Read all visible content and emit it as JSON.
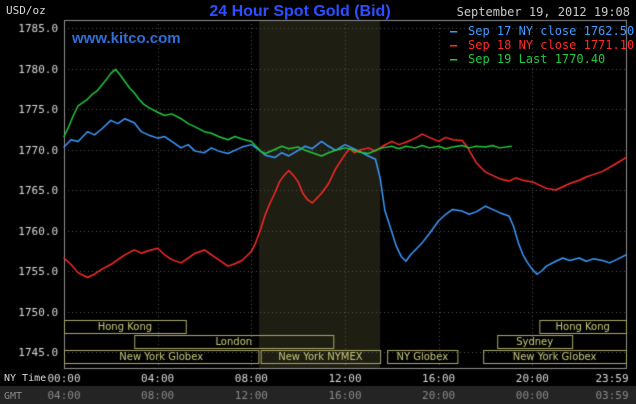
{
  "header": {
    "unit_label": "USD/oz",
    "title": "24 Hour Spot Gold (Bid)",
    "datetime": "September 19, 2012 19:08",
    "watermark": "www.kitco.com"
  },
  "legend_marker": "—",
  "legend": [
    {
      "label": "Sep 17 NY close 1762.50",
      "color": "#3d9aff"
    },
    {
      "label": "Sep 18 NY close 1771.10",
      "color": "#ff2a2a"
    },
    {
      "label": "Sep 19 Last 1770.40",
      "color": "#22c83c"
    }
  ],
  "axes": {
    "ny_time_label": "NY Time",
    "gmt_label": "GMT"
  },
  "colors": {
    "background": "#000000",
    "grid": "#4f4f4f",
    "border": "#8f8f8f",
    "band": "#1e1e12",
    "gmt_strip": "#242424",
    "title": "#2d4fff",
    "watermark": "#2e6fd8",
    "datetime": "#c8c8c8",
    "axis_text": "#d8d8d8",
    "gmt_text": "#8a8a8a",
    "session": "#a8a868",
    "session_text": "#c8c87a"
  },
  "chart_data": {
    "type": "line",
    "title": "24 Hour Spot Gold (Bid)",
    "ylabel": "USD/oz",
    "ylim": [
      1745,
      1785
    ],
    "xlim_hours": [
      0,
      24
    ],
    "y_tick_step": 5,
    "y_tick_labels": [
      "1785.0",
      "1780.0",
      "1775.0",
      "1770.0",
      "1765.0",
      "1760.0",
      "1755.0",
      "1750.0",
      "1745.0"
    ],
    "x_ticks": [
      {
        "hour": 0,
        "ny": "00:00",
        "gmt": "04:00"
      },
      {
        "hour": 4,
        "ny": "04:00",
        "gmt": "08:00"
      },
      {
        "hour": 8,
        "ny": "08:00",
        "gmt": "12:00"
      },
      {
        "hour": 12,
        "ny": "12:00",
        "gmt": "16:00"
      },
      {
        "hour": 16,
        "ny": "16:00",
        "gmt": "20:00"
      },
      {
        "hour": 20,
        "ny": "20:00",
        "gmt": "00:00"
      },
      {
        "hour": 24,
        "ny": "23:59",
        "gmt": "03:59"
      }
    ],
    "grid": true,
    "legend_position": "top-right",
    "highlight_band_hours": [
      8.33,
      13.5
    ],
    "sessions": [
      [
        {
          "label": "Hong Kong",
          "start": 0,
          "end": 5.2
        },
        {
          "label": "Hong Kong",
          "start": 20.3,
          "end": 24
        }
      ],
      [
        {
          "label": "London",
          "start": 3.0,
          "end": 11.5
        },
        {
          "label": "Sydney",
          "start": 18.5,
          "end": 21.7
        }
      ],
      [
        {
          "label": "New York Globex",
          "start": 0,
          "end": 8.3
        },
        {
          "label": "New York NYMEX",
          "start": 8.4,
          "end": 13.5
        },
        {
          "label": "NY Globex",
          "start": 13.8,
          "end": 16.8
        },
        {
          "label": "New York Globex",
          "start": 17.9,
          "end": 24
        }
      ]
    ],
    "series": [
      {
        "name": "Sep 17 NY close 1762.50",
        "color": "#3d9aff",
        "points": [
          [
            0,
            1770.3
          ],
          [
            0.3,
            1771.2
          ],
          [
            0.6,
            1771.0
          ],
          [
            1,
            1772.2
          ],
          [
            1.3,
            1771.8
          ],
          [
            1.6,
            1772.5
          ],
          [
            2,
            1773.6
          ],
          [
            2.3,
            1773.2
          ],
          [
            2.6,
            1773.8
          ],
          [
            3,
            1773.3
          ],
          [
            3.3,
            1772.2
          ],
          [
            3.6,
            1771.8
          ],
          [
            4,
            1771.4
          ],
          [
            4.3,
            1771.6
          ],
          [
            4.6,
            1771.0
          ],
          [
            5,
            1770.2
          ],
          [
            5.3,
            1770.6
          ],
          [
            5.6,
            1769.8
          ],
          [
            6,
            1769.6
          ],
          [
            6.3,
            1770.2
          ],
          [
            6.6,
            1769.8
          ],
          [
            7,
            1769.5
          ],
          [
            7.3,
            1769.9
          ],
          [
            7.6,
            1770.3
          ],
          [
            8,
            1770.6
          ],
          [
            8.3,
            1770.0
          ],
          [
            8.6,
            1769.3
          ],
          [
            9,
            1769.0
          ],
          [
            9.3,
            1769.6
          ],
          [
            9.6,
            1769.2
          ],
          [
            10,
            1769.9
          ],
          [
            10.3,
            1770.4
          ],
          [
            10.6,
            1770.1
          ],
          [
            11,
            1771.0
          ],
          [
            11.3,
            1770.4
          ],
          [
            11.6,
            1769.9
          ],
          [
            12,
            1770.6
          ],
          [
            12.3,
            1770.2
          ],
          [
            12.6,
            1769.8
          ],
          [
            13,
            1769.2
          ],
          [
            13.3,
            1768.8
          ],
          [
            13.5,
            1766.5
          ],
          [
            13.7,
            1762.5
          ],
          [
            14,
            1759.8
          ],
          [
            14.2,
            1758.0
          ],
          [
            14.4,
            1756.8
          ],
          [
            14.6,
            1756.2
          ],
          [
            14.8,
            1757.0
          ],
          [
            15,
            1757.6
          ],
          [
            15.3,
            1758.5
          ],
          [
            15.6,
            1759.6
          ],
          [
            16,
            1761.2
          ],
          [
            16.3,
            1762.0
          ],
          [
            16.6,
            1762.6
          ],
          [
            17,
            1762.4
          ],
          [
            17.3,
            1762.0
          ],
          [
            17.6,
            1762.3
          ],
          [
            18,
            1763.0
          ],
          [
            18.3,
            1762.6
          ],
          [
            18.6,
            1762.2
          ],
          [
            19,
            1761.8
          ],
          [
            19.2,
            1760.5
          ],
          [
            19.4,
            1758.5
          ],
          [
            19.6,
            1757.0
          ],
          [
            19.8,
            1756.0
          ],
          [
            20,
            1755.2
          ],
          [
            20.2,
            1754.6
          ],
          [
            20.4,
            1755.0
          ],
          [
            20.6,
            1755.6
          ],
          [
            21,
            1756.2
          ],
          [
            21.3,
            1756.6
          ],
          [
            21.6,
            1756.3
          ],
          [
            22,
            1756.6
          ],
          [
            22.3,
            1756.2
          ],
          [
            22.6,
            1756.5
          ],
          [
            23,
            1756.3
          ],
          [
            23.3,
            1756.0
          ],
          [
            23.6,
            1756.4
          ],
          [
            24,
            1757.0
          ]
        ]
      },
      {
        "name": "Sep 18 NY close 1771.10",
        "color": "#ff2a2a",
        "points": [
          [
            0,
            1756.6
          ],
          [
            0.3,
            1755.8
          ],
          [
            0.6,
            1754.8
          ],
          [
            1,
            1754.2
          ],
          [
            1.3,
            1754.6
          ],
          [
            1.6,
            1755.2
          ],
          [
            2,
            1755.8
          ],
          [
            2.3,
            1756.4
          ],
          [
            2.6,
            1757.0
          ],
          [
            3,
            1757.6
          ],
          [
            3.3,
            1757.2
          ],
          [
            3.6,
            1757.5
          ],
          [
            4,
            1757.8
          ],
          [
            4.3,
            1757.0
          ],
          [
            4.6,
            1756.4
          ],
          [
            5,
            1756.0
          ],
          [
            5.3,
            1756.6
          ],
          [
            5.6,
            1757.2
          ],
          [
            6,
            1757.6
          ],
          [
            6.3,
            1757.0
          ],
          [
            6.6,
            1756.4
          ],
          [
            7,
            1755.6
          ],
          [
            7.3,
            1755.9
          ],
          [
            7.6,
            1756.3
          ],
          [
            8,
            1757.4
          ],
          [
            8.2,
            1758.6
          ],
          [
            8.4,
            1760.2
          ],
          [
            8.6,
            1762.0
          ],
          [
            8.8,
            1763.4
          ],
          [
            9,
            1764.6
          ],
          [
            9.2,
            1766.0
          ],
          [
            9.4,
            1766.8
          ],
          [
            9.6,
            1767.4
          ],
          [
            9.8,
            1766.8
          ],
          [
            10,
            1766.0
          ],
          [
            10.2,
            1764.6
          ],
          [
            10.4,
            1763.8
          ],
          [
            10.6,
            1763.4
          ],
          [
            11,
            1764.6
          ],
          [
            11.3,
            1765.8
          ],
          [
            11.6,
            1767.6
          ],
          [
            12,
            1769.4
          ],
          [
            12.2,
            1770.1
          ],
          [
            12.4,
            1769.6
          ],
          [
            12.6,
            1769.9
          ],
          [
            13,
            1770.2
          ],
          [
            13.3,
            1769.8
          ],
          [
            13.6,
            1770.4
          ],
          [
            14,
            1771.0
          ],
          [
            14.3,
            1770.6
          ],
          [
            14.6,
            1770.9
          ],
          [
            15,
            1771.4
          ],
          [
            15.3,
            1771.9
          ],
          [
            15.6,
            1771.5
          ],
          [
            16,
            1771.0
          ],
          [
            16.3,
            1771.5
          ],
          [
            16.6,
            1771.2
          ],
          [
            17,
            1771.1
          ],
          [
            17.2,
            1770.4
          ],
          [
            17.4,
            1769.4
          ],
          [
            17.6,
            1768.4
          ],
          [
            18,
            1767.2
          ],
          [
            18.3,
            1766.8
          ],
          [
            18.6,
            1766.4
          ],
          [
            19,
            1766.1
          ],
          [
            19.3,
            1766.5
          ],
          [
            19.6,
            1766.2
          ],
          [
            20,
            1766.0
          ],
          [
            20.3,
            1765.6
          ],
          [
            20.6,
            1765.2
          ],
          [
            21,
            1765.0
          ],
          [
            21.3,
            1765.4
          ],
          [
            21.6,
            1765.8
          ],
          [
            22,
            1766.2
          ],
          [
            22.3,
            1766.6
          ],
          [
            22.6,
            1766.9
          ],
          [
            23,
            1767.3
          ],
          [
            23.3,
            1767.8
          ],
          [
            23.6,
            1768.3
          ],
          [
            24,
            1769.0
          ]
        ]
      },
      {
        "name": "Sep 19 Last 1770.40",
        "color": "#22c83c",
        "points": [
          [
            0,
            1771.6
          ],
          [
            0.2,
            1772.8
          ],
          [
            0.4,
            1774.2
          ],
          [
            0.6,
            1775.4
          ],
          [
            0.8,
            1775.8
          ],
          [
            1,
            1776.2
          ],
          [
            1.2,
            1776.8
          ],
          [
            1.4,
            1777.2
          ],
          [
            1.6,
            1777.9
          ],
          [
            1.8,
            1778.6
          ],
          [
            2,
            1779.4
          ],
          [
            2.2,
            1779.9
          ],
          [
            2.4,
            1779.2
          ],
          [
            2.6,
            1778.4
          ],
          [
            2.8,
            1777.6
          ],
          [
            3,
            1777.0
          ],
          [
            3.2,
            1776.2
          ],
          [
            3.4,
            1775.6
          ],
          [
            3.6,
            1775.2
          ],
          [
            4,
            1774.6
          ],
          [
            4.3,
            1774.2
          ],
          [
            4.6,
            1774.4
          ],
          [
            5,
            1773.8
          ],
          [
            5.3,
            1773.2
          ],
          [
            5.6,
            1772.8
          ],
          [
            6,
            1772.2
          ],
          [
            6.3,
            1772.0
          ],
          [
            6.6,
            1771.6
          ],
          [
            7,
            1771.2
          ],
          [
            7.3,
            1771.6
          ],
          [
            7.6,
            1771.3
          ],
          [
            8,
            1771.0
          ],
          [
            8.2,
            1770.4
          ],
          [
            8.4,
            1769.8
          ],
          [
            8.6,
            1769.5
          ],
          [
            9,
            1770.0
          ],
          [
            9.3,
            1770.4
          ],
          [
            9.6,
            1770.1
          ],
          [
            10,
            1770.3
          ],
          [
            10.3,
            1769.9
          ],
          [
            10.6,
            1769.6
          ],
          [
            11,
            1769.2
          ],
          [
            11.3,
            1769.6
          ],
          [
            11.6,
            1769.9
          ],
          [
            12,
            1770.2
          ],
          [
            12.3,
            1770.0
          ],
          [
            12.6,
            1769.7
          ],
          [
            13,
            1769.5
          ],
          [
            13.3,
            1769.9
          ],
          [
            13.6,
            1770.2
          ],
          [
            14,
            1770.4
          ],
          [
            14.3,
            1770.1
          ],
          [
            14.6,
            1770.4
          ],
          [
            15,
            1770.2
          ],
          [
            15.3,
            1770.5
          ],
          [
            15.6,
            1770.2
          ],
          [
            16,
            1770.4
          ],
          [
            16.3,
            1770.1
          ],
          [
            16.6,
            1770.3
          ],
          [
            17,
            1770.5
          ],
          [
            17.3,
            1770.2
          ],
          [
            17.6,
            1770.4
          ],
          [
            18,
            1770.3
          ],
          [
            18.3,
            1770.5
          ],
          [
            18.6,
            1770.2
          ],
          [
            19.1,
            1770.4
          ]
        ]
      }
    ]
  }
}
